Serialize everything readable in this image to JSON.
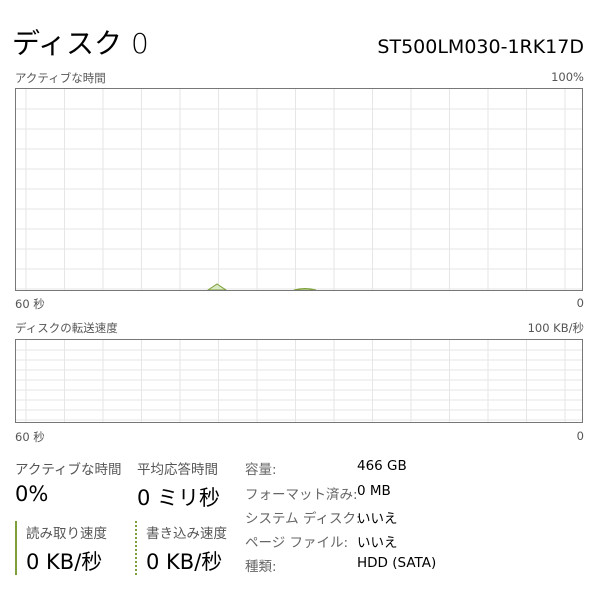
{
  "header": {
    "title": "ディスク 0",
    "model": "ST500LM030-1RK17D"
  },
  "active_time_graph": {
    "label": "アクティブな時間",
    "max_label": "100%",
    "time_label": "60 秒",
    "min_label": "0"
  },
  "transfer_graph": {
    "label": "ディスクの転送速度",
    "max_label": "100 KB/秒",
    "time_label": "60 秒",
    "min_label": "0"
  },
  "colors": {
    "accent": "#7ea03a",
    "grid": "#e6e6e6",
    "border": "#777777"
  },
  "stats": {
    "active_time": {
      "label": "アクティブな時間",
      "value": "0%"
    },
    "avg_response": {
      "label": "平均応答時間",
      "value": "0 ミリ秒"
    },
    "read_speed": {
      "label": "読み取り速度",
      "value": "0 KB/秒"
    },
    "write_speed": {
      "label": "書き込み速度",
      "value": "0 KB/秒"
    }
  },
  "properties": [
    {
      "label": "容量:",
      "value": "466 GB"
    },
    {
      "label": "フォーマット済み:",
      "value": "0 MB"
    },
    {
      "label": "システム ディスク:",
      "value": "いいえ"
    },
    {
      "label": "ページ ファイル:",
      "value": "いいえ"
    },
    {
      "label": "種類:",
      "value": "HDD (SATA)"
    }
  ]
}
